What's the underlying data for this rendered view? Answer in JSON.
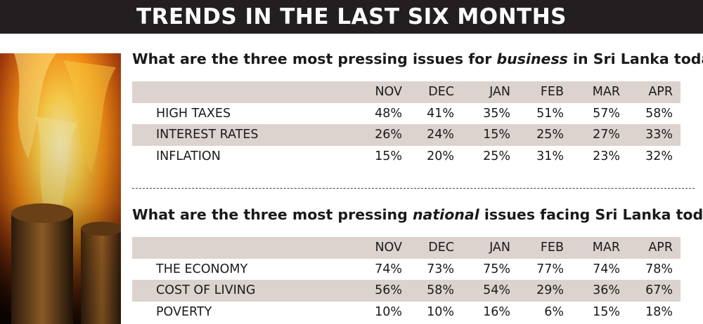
{
  "banner": {
    "title": "TRENDS IN THE LAST SIX MONTHS"
  },
  "months": [
    "NOV",
    "DEC",
    "JAN",
    "FEB",
    "MAR",
    "APR"
  ],
  "business": {
    "question_pre": "What are the three most pressing issues for ",
    "question_em": "business",
    "question_post": " in Sri Lanka today?",
    "rows": [
      {
        "label": "HIGH TAXES",
        "values": [
          "48%",
          "41%",
          "35%",
          "51%",
          "57%",
          "58%"
        ]
      },
      {
        "label": "INTEREST RATES",
        "values": [
          "26%",
          "24%",
          "15%",
          "25%",
          "27%",
          "33%"
        ]
      },
      {
        "label": "INFLATION",
        "values": [
          "15%",
          "20%",
          "25%",
          "31%",
          "23%",
          "32%"
        ]
      }
    ]
  },
  "national": {
    "question_pre": "What are the three most pressing ",
    "question_em": "national",
    "question_post": " issues facing Sri Lanka today?",
    "rows": [
      {
        "label": "THE ECONOMY",
        "values": [
          "74%",
          "73%",
          "75%",
          "77%",
          "74%",
          "78%"
        ]
      },
      {
        "label": "COST OF LIVING",
        "values": [
          "56%",
          "58%",
          "54%",
          "29%",
          "36%",
          "67%"
        ]
      },
      {
        "label": "POVERTY",
        "values": [
          "10%",
          "10%",
          "16%",
          "6%",
          "15%",
          "18%"
        ]
      }
    ]
  },
  "colors": {
    "banner": "#231f20",
    "row_shade": "#dcd3cf"
  }
}
